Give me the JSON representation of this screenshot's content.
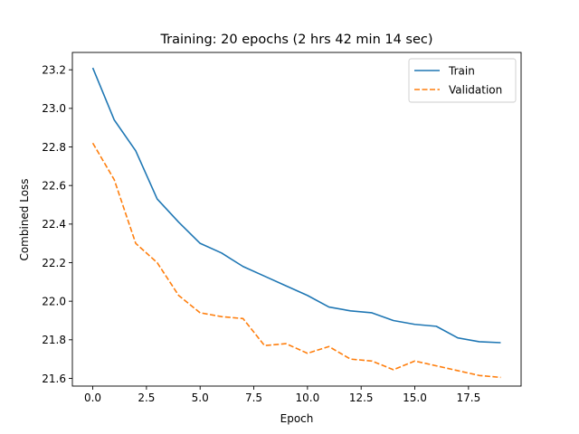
{
  "chart_data": {
    "type": "line",
    "title": "Training: 20 epochs (2 hrs 42 min 14 sec)",
    "xlabel": "Epoch",
    "ylabel": "Combined Loss",
    "xlim": [
      -0.95,
      19.95
    ],
    "ylim": [
      21.56,
      23.29
    ],
    "xticks": [
      0.0,
      2.5,
      5.0,
      7.5,
      10.0,
      12.5,
      15.0,
      17.5
    ],
    "xtick_labels": [
      "0.0",
      "2.5",
      "5.0",
      "7.5",
      "10.0",
      "12.5",
      "15.0",
      "17.5"
    ],
    "yticks": [
      21.6,
      21.8,
      22.0,
      22.2,
      22.4,
      22.6,
      22.8,
      23.0,
      23.2
    ],
    "ytick_labels": [
      "21.6",
      "21.8",
      "22.0",
      "22.2",
      "22.4",
      "22.6",
      "22.8",
      "23.0",
      "23.2"
    ],
    "grid": false,
    "legend_position": "top-right",
    "x": [
      0,
      1,
      2,
      3,
      4,
      5,
      6,
      7,
      8,
      9,
      10,
      11,
      12,
      13,
      14,
      15,
      16,
      17,
      18,
      19
    ],
    "series": [
      {
        "name": "Train",
        "color": "#1f77b4",
        "style": "solid",
        "values": [
          23.21,
          22.94,
          22.78,
          22.53,
          22.41,
          22.3,
          22.25,
          22.18,
          22.13,
          22.08,
          22.03,
          21.97,
          21.95,
          21.94,
          21.9,
          21.88,
          21.87,
          21.81,
          21.79,
          21.785
        ]
      },
      {
        "name": "Validation",
        "color": "#ff7f0e",
        "style": "dashed",
        "values": [
          22.82,
          22.63,
          22.3,
          22.2,
          22.03,
          21.94,
          21.92,
          21.91,
          21.77,
          21.78,
          21.73,
          21.765,
          21.7,
          21.69,
          21.645,
          21.69,
          21.665,
          21.64,
          21.615,
          21.605
        ]
      }
    ]
  }
}
